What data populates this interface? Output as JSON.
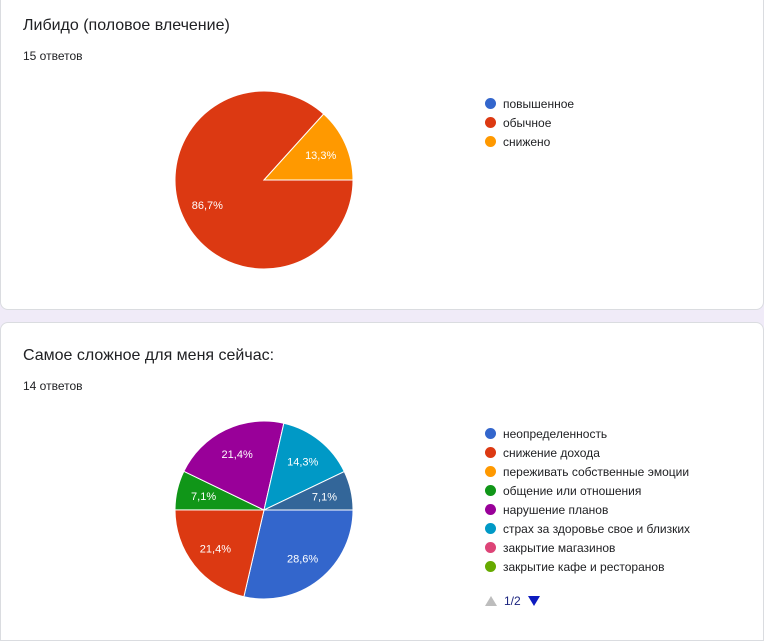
{
  "chart_data": [
    {
      "type": "pie",
      "title": "Либидо (половое влечение)",
      "subtitle": "15 ответов",
      "labels": [
        "повышенное",
        "обычное",
        "снижено"
      ],
      "values": [
        0,
        86.7,
        13.3
      ],
      "data_labels": [
        "",
        "86,7%",
        "13,3%"
      ],
      "colors": [
        "#3366cc",
        "#dc3912",
        "#ff9900"
      ],
      "legend_position": "right"
    },
    {
      "type": "pie",
      "title": "Самое сложное для меня сейчас:",
      "subtitle": "14 ответов",
      "labels": [
        "неопределенность",
        "снижение дохода",
        "переживать собственные эмоции",
        "общение или отношения",
        "нарушение планов",
        "страх за здоровье свое и близких",
        "закрытие магазинов",
        "закрытие кафе и ресторанов"
      ],
      "values": [
        28.6,
        21.4,
        0,
        7.1,
        21.4,
        14.3,
        0,
        0
      ],
      "data_labels": [
        "28,6%",
        "21,4%",
        "",
        "7,1%",
        "21,4%",
        "14,3%",
        "",
        ""
      ],
      "colors": [
        "#3366cc",
        "#dc3912",
        "#ff9900",
        "#109618",
        "#990099",
        "#0099c6",
        "#dd4477",
        "#66aa00"
      ],
      "extra_slices": [
        {
          "label": "",
          "value": 7.1,
          "data_label": "7,1%",
          "color": "#336699"
        }
      ],
      "legend_position": "right",
      "legend_page": "1/2"
    }
  ]
}
